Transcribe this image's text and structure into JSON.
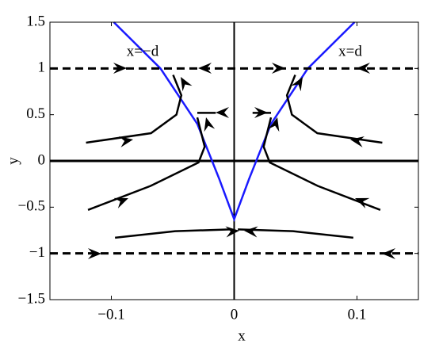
{
  "chart_data": {
    "type": "line",
    "xlabel": "x",
    "ylabel": "y",
    "annotations": [
      "x=−d",
      "x=d"
    ],
    "xlim": [
      -0.15,
      0.15
    ],
    "ylim": [
      -1.5,
      1.5
    ],
    "xticks": [
      {
        "value": -0.1,
        "label": "−0.1"
      },
      0,
      0.1
    ],
    "yticks": [
      {
        "value": -1.5,
        "label": "−1.5"
      },
      {
        "value": -1,
        "label": "−1"
      },
      {
        "value": -0.5,
        "label": "−0.5"
      },
      0,
      0.5,
      1,
      1.5
    ],
    "series": [
      {
        "color": "#1a1aff",
        "x": [
          -0.098,
          -0.06,
          -0.03,
          -0.012,
          0,
          0.012,
          0.03,
          0.06,
          0.098
        ],
        "y": [
          1.5,
          1.0,
          0.4,
          -0.2,
          -0.63,
          -0.2,
          0.4,
          1.0,
          1.5
        ]
      },
      {
        "color": "#000000",
        "dashed": true,
        "x": [
          -0.15,
          0.15
        ],
        "y": [
          1,
          1
        ]
      },
      {
        "color": "#000000",
        "dashed": true,
        "x": [
          -0.15,
          0.15
        ],
        "y": [
          -1,
          -1
        ]
      },
      {
        "color": "#000000",
        "x": [
          -0.1206,
          -0.0677,
          -0.047,
          -0.043,
          -0.0497
        ],
        "y": [
          0.197,
          0.3,
          0.5,
          0.71,
          0.93
        ]
      },
      {
        "color": "#000000",
        "x": [
          0.1206,
          0.0677,
          0.047,
          0.043,
          0.0497
        ],
        "y": [
          0.197,
          0.3,
          0.5,
          0.71,
          0.93
        ]
      },
      {
        "color": "#000000",
        "x": [
          -0.119,
          -0.068,
          -0.029,
          -0.024,
          -0.03
        ],
        "y": [
          -0.53,
          -0.27,
          -0.017,
          0.154,
          0.47
        ]
      },
      {
        "color": "#000000",
        "x": [
          0.119,
          0.068,
          0.029,
          0.024,
          0.03
        ],
        "y": [
          -0.53,
          -0.27,
          -0.017,
          0.154,
          0.47
        ]
      },
      {
        "color": "#000000",
        "x": [
          -0.097,
          -0.048,
          -0.003
        ],
        "y": [
          -0.83,
          -0.76,
          -0.74
        ]
      },
      {
        "color": "#000000",
        "x": [
          0.097,
          0.048,
          0.003
        ],
        "y": [
          -0.83,
          -0.76,
          -0.74
        ]
      },
      {
        "color": "#000000",
        "x": [
          -0.03,
          -0.015
        ],
        "y": [
          0.52,
          0.52
        ]
      },
      {
        "color": "#000000",
        "x": [
          0.03,
          0.015
        ],
        "y": [
          0.52,
          0.52
        ]
      }
    ]
  }
}
